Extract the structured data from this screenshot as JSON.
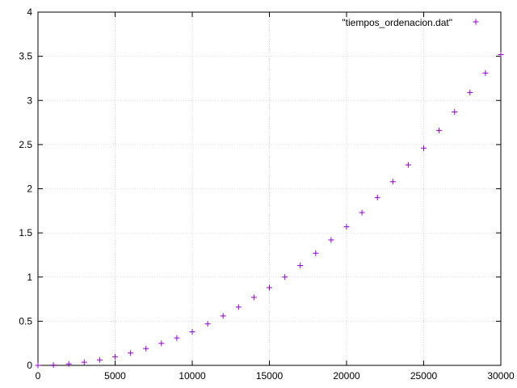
{
  "chart_data": {
    "type": "scatter",
    "title": "",
    "xlabel": "",
    "ylabel": "",
    "xlim": [
      0,
      30000
    ],
    "ylim": [
      0,
      4
    ],
    "x_ticks": [
      0,
      5000,
      10000,
      15000,
      20000,
      25000,
      30000
    ],
    "y_ticks": [
      0,
      0.5,
      1,
      1.5,
      2,
      2.5,
      3,
      3.5,
      4
    ],
    "x_tick_labels": [
      "0",
      "5000",
      "10000",
      "15000",
      "20000",
      "25000",
      "30000"
    ],
    "y_tick_labels": [
      "0",
      "0.5",
      "1",
      "1.5",
      "2",
      "2.5",
      "3",
      "3.5",
      "4"
    ],
    "grid": true,
    "legend_position": "top-right",
    "marker": "plus",
    "color": "#9400d3",
    "series": [
      {
        "name": "\"tiempos_ordenacion.dat\"",
        "x": [
          0,
          1000,
          2000,
          3000,
          4000,
          5000,
          6000,
          7000,
          8000,
          9000,
          10000,
          11000,
          12000,
          13000,
          14000,
          15000,
          16000,
          17000,
          18000,
          19000,
          20000,
          21000,
          22000,
          23000,
          24000,
          25000,
          26000,
          27000,
          28000,
          29000,
          30000
        ],
        "y": [
          0.0,
          0.004,
          0.016,
          0.035,
          0.062,
          0.097,
          0.14,
          0.19,
          0.25,
          0.31,
          0.38,
          0.47,
          0.56,
          0.66,
          0.77,
          0.88,
          1.0,
          1.13,
          1.27,
          1.42,
          1.57,
          1.73,
          1.9,
          2.08,
          2.27,
          2.46,
          2.66,
          2.87,
          3.09,
          3.31,
          3.52
        ]
      }
    ]
  }
}
